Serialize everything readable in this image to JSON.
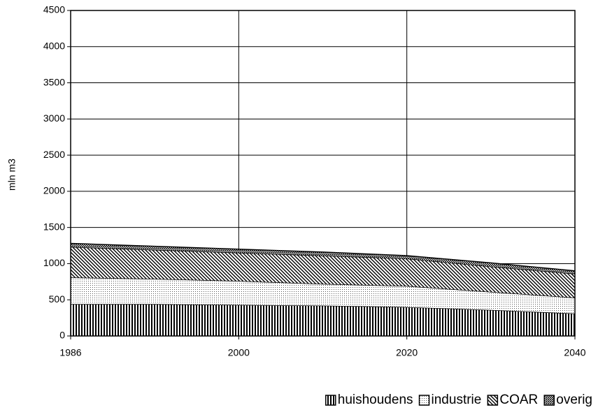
{
  "chart_data": {
    "type": "stacked-area",
    "ylabel": "mln m3",
    "categories": [
      "1986",
      null,
      "2000",
      null,
      "2020",
      null,
      "2040"
    ],
    "series": [
      {
        "name": "huishoudens",
        "color": "#000000",
        "pattern": "vertical",
        "values": [
          440,
          440,
          430,
          420,
          400,
          360,
          310
        ]
      },
      {
        "name": "industrie",
        "color": "#000000",
        "pattern": "dots",
        "values": [
          370,
          350,
          330,
          300,
          290,
          250,
          220
        ]
      },
      {
        "name": "COAR",
        "color": "#000000",
        "pattern": "backslash",
        "values": [
          420,
          400,
          390,
          390,
          380,
          350,
          330
        ]
      },
      {
        "name": "overig",
        "color": "#000000",
        "pattern": "slash",
        "values": [
          50,
          50,
          50,
          50,
          40,
          50,
          40
        ]
      }
    ],
    "ylim": [
      0,
      4500
    ],
    "yticks": [
      0,
      500,
      1000,
      1500,
      2000,
      2500,
      3000,
      3500,
      4000,
      4500
    ],
    "grid": true,
    "legend": "bottom-right"
  }
}
